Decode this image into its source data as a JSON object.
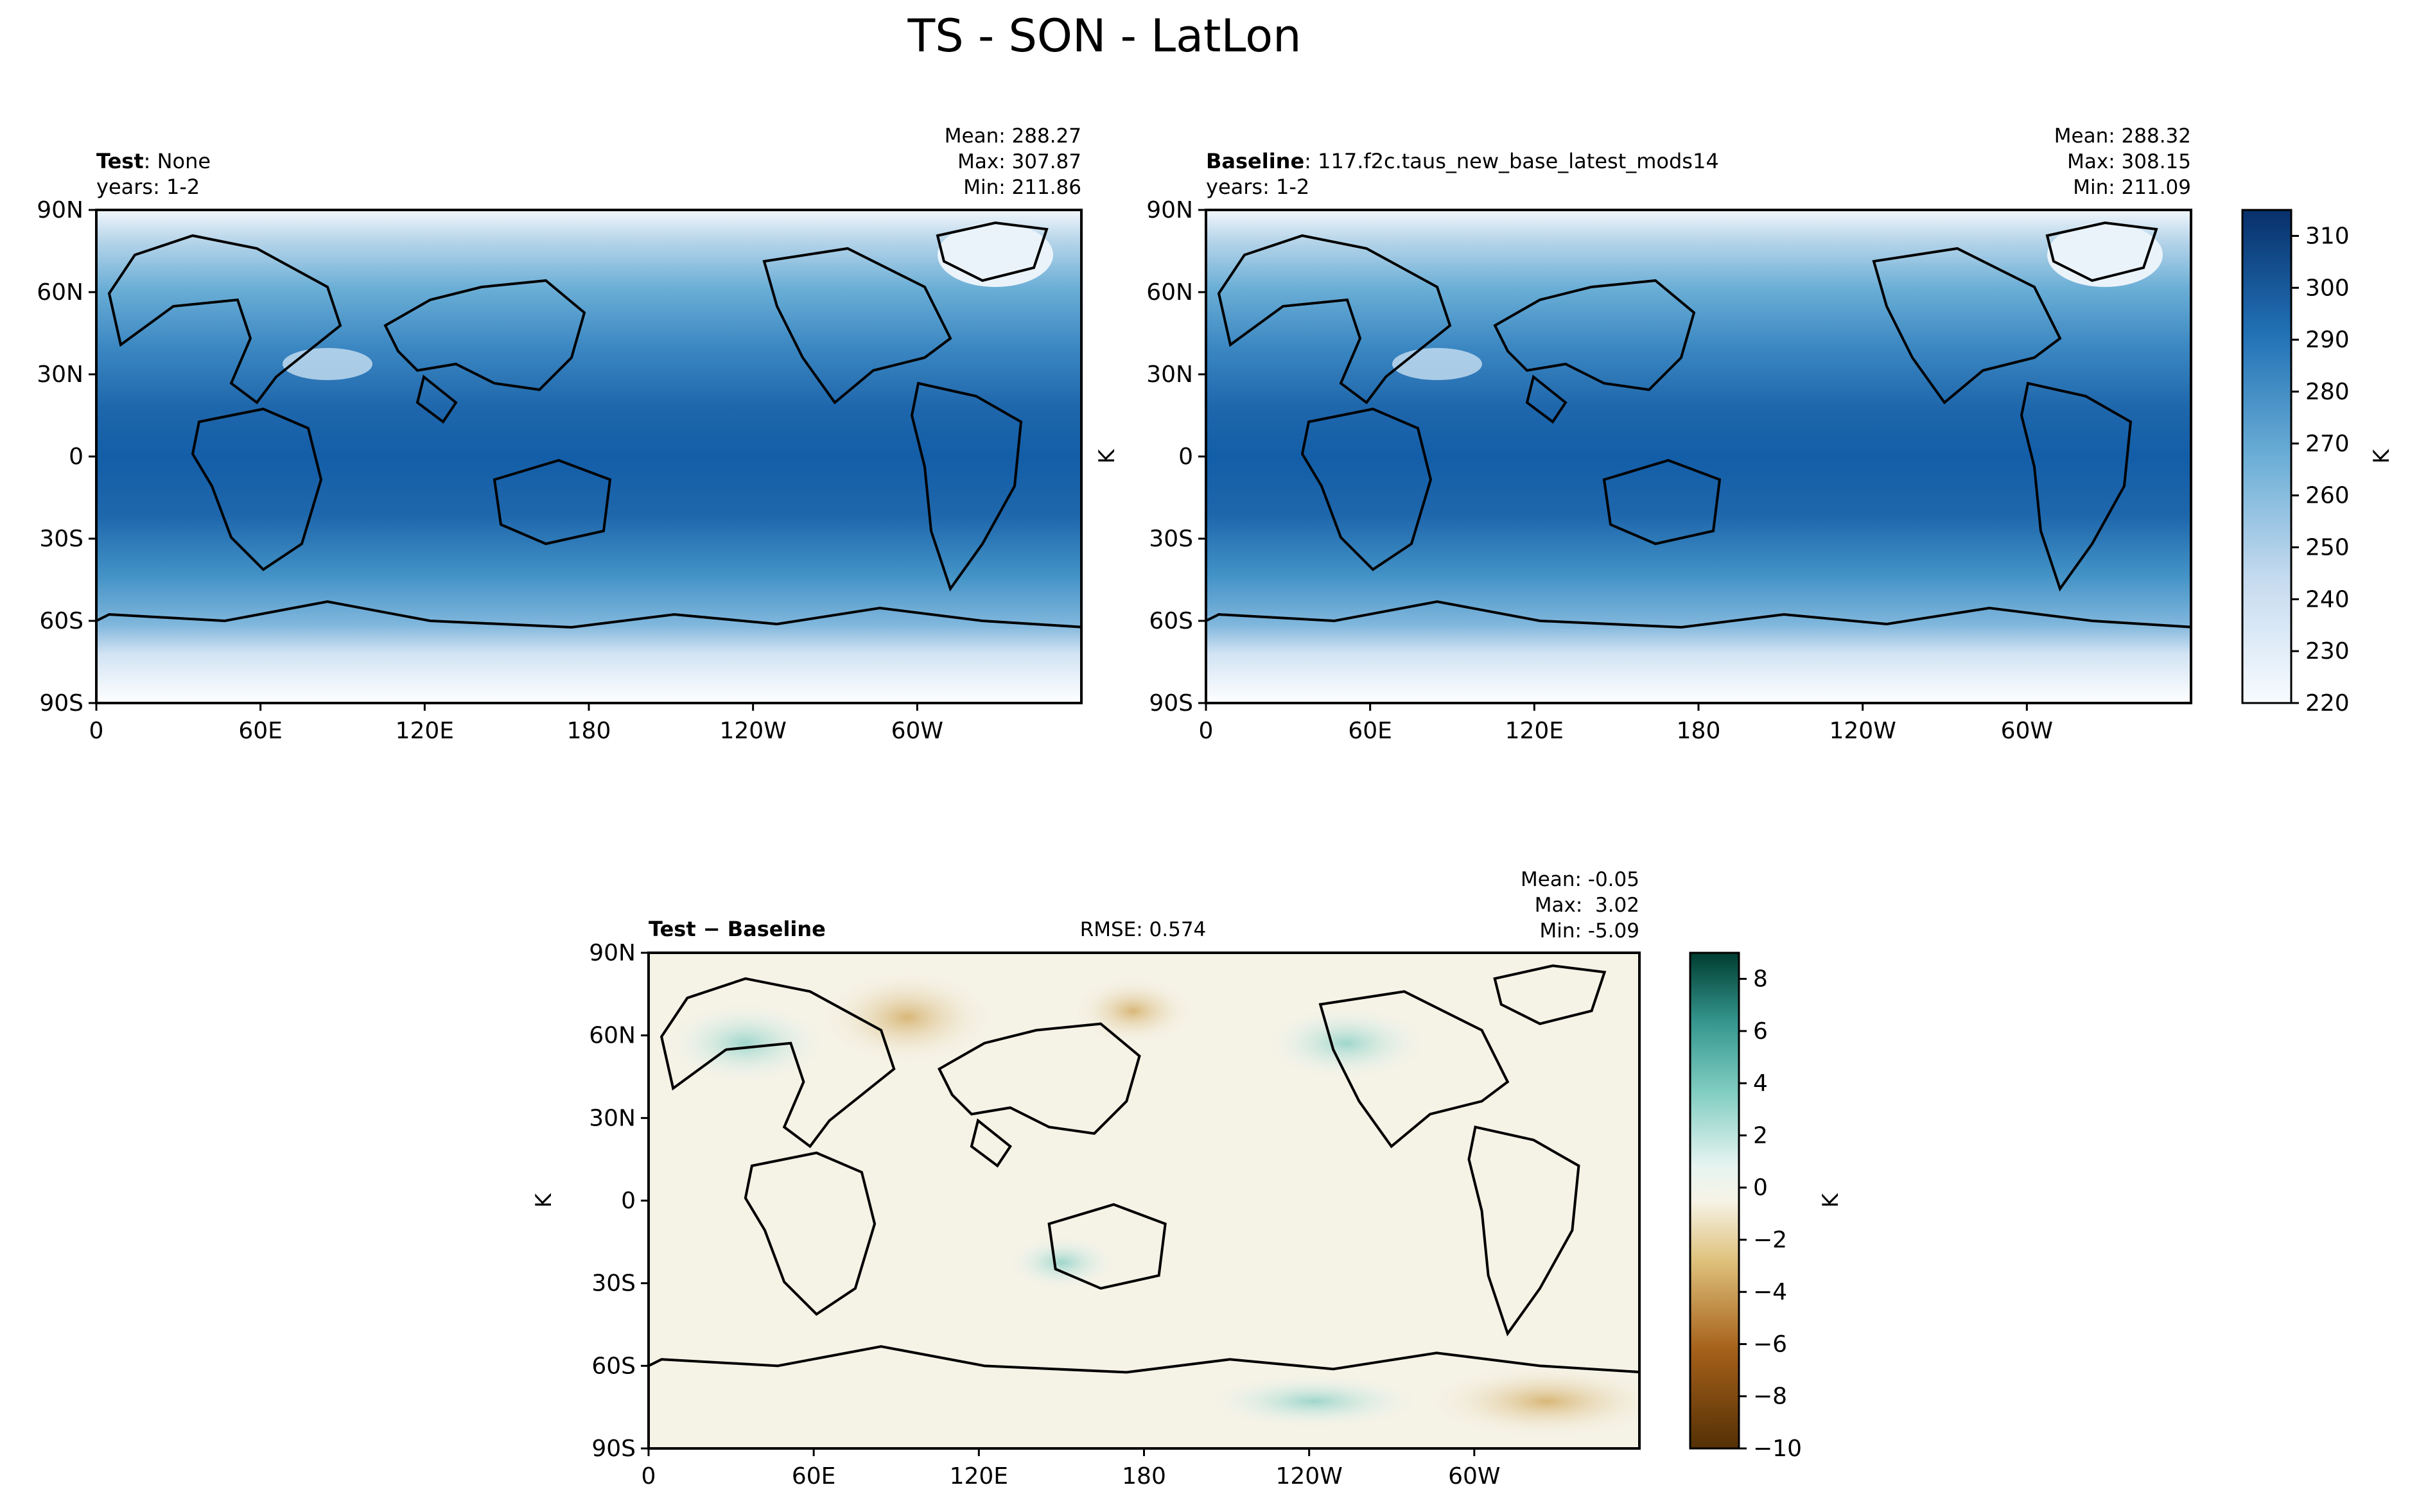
{
  "figure": {
    "title": "TS - SON - LatLon"
  },
  "chart_data": [
    {
      "type": "heatmap",
      "panel": "test",
      "label_bold": "Test",
      "label_rest": ": None",
      "years": "years: 1-2",
      "stats": [
        "Mean: 288.27",
        "Max: 307.87",
        "Min: 211.86"
      ],
      "xticks": [
        "0",
        "60E",
        "120E",
        "180",
        "120W",
        "60W"
      ],
      "yticks": [
        "90N",
        "60N",
        "30N",
        "0",
        "30S",
        "60S",
        "90S"
      ],
      "xlim": [
        0,
        360
      ],
      "ylim": [
        -90,
        90
      ],
      "colormap": "Blues",
      "mean": 288.27,
      "max": 307.87,
      "min": 211.86
    },
    {
      "type": "heatmap",
      "panel": "baseline",
      "label_bold": "Baseline",
      "label_rest": ": 117.f2c.taus_new_base_latest_mods14",
      "years": "years: 1-2",
      "stats": [
        "Mean: 288.32",
        "Max: 308.15",
        "Min: 211.09"
      ],
      "xticks": [
        "0",
        "60E",
        "120E",
        "180",
        "120W",
        "60W"
      ],
      "yticks": [
        "90N",
        "60N",
        "30N",
        "0",
        "30S",
        "60S",
        "90S"
      ],
      "xlim": [
        0,
        360
      ],
      "ylim": [
        -90,
        90
      ],
      "ylabel": "K",
      "colormap": "Blues",
      "mean": 288.32,
      "max": 308.15,
      "min": 211.09,
      "colorbar": {
        "label": "K",
        "range": [
          220,
          315
        ],
        "ticks": [
          "310",
          "300",
          "290",
          "280",
          "270",
          "260",
          "250",
          "240",
          "230",
          "220"
        ]
      }
    },
    {
      "type": "heatmap",
      "panel": "difference",
      "label_bold": "Test − Baseline",
      "rmse": "RMSE: 0.574",
      "stats": [
        "Mean: -0.05",
        "Max:  3.02",
        "Min: -5.09"
      ],
      "xticks": [
        "0",
        "60E",
        "120E",
        "180",
        "120W",
        "60W"
      ],
      "yticks": [
        "90N",
        "60N",
        "30N",
        "0",
        "30S",
        "60S",
        "90S"
      ],
      "xlim": [
        0,
        360
      ],
      "ylim": [
        -90,
        90
      ],
      "ylabel": "K",
      "colormap": "BrBG",
      "mean": -0.05,
      "max": 3.02,
      "min": -5.09,
      "colorbar": {
        "label": "K",
        "range": [
          -10,
          9
        ],
        "ticks": [
          "8",
          "6",
          "4",
          "2",
          "0",
          "−2",
          "−4",
          "−6",
          "−8",
          "−10"
        ]
      }
    }
  ]
}
